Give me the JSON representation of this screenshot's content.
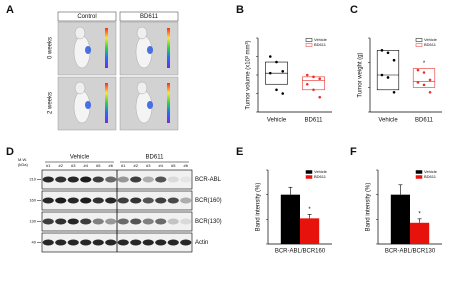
{
  "panel_labels": [
    "A",
    "B",
    "C",
    "D",
    "E",
    "F"
  ],
  "panel_a": {
    "columns": [
      "Control",
      "BD611"
    ],
    "rows": [
      "0 weeks",
      "2 weeks"
    ]
  },
  "panel_d": {
    "mw_label": [
      "M.W.",
      "(kDa)"
    ],
    "groups": [
      "Vehicle",
      "BD611"
    ],
    "lanes": [
      "#1",
      "#2",
      "#3",
      "#4",
      "#5",
      "#6",
      "#1",
      "#2",
      "#3",
      "#4",
      "#5",
      "#6"
    ],
    "markers": [
      "210",
      "160",
      "130",
      "40"
    ],
    "bands": [
      "BCR-ABL",
      "BCR(160)",
      "BCR(130)",
      "Actin"
    ]
  },
  "chart_data": [
    {
      "type": "box",
      "ylabel": "Tumor volume (x10³ mm³)",
      "categories": [
        "Vehicle",
        "BD611"
      ],
      "series": [
        {
          "name": "Vehicle",
          "color": "#000000",
          "points": [
            1.5,
            1.35,
            1.1,
            1.05,
            0.6,
            0.5
          ],
          "q1": 0.75,
          "median": 1.05,
          "q3": 1.35
        },
        {
          "name": "BD611",
          "color": "#e8322b",
          "points": [
            1.0,
            0.95,
            0.9,
            0.75,
            0.6,
            0.4
          ],
          "q1": 0.6,
          "median": 0.85,
          "q3": 0.95
        }
      ],
      "ylim": [
        0,
        2
      ],
      "yticks": [
        0,
        0.5,
        1,
        1.5,
        2
      ],
      "legend": "upper right"
    },
    {
      "type": "box",
      "ylabel": "Tumor weight (g)",
      "categories": [
        "Vehicle",
        "BD611"
      ],
      "series": [
        {
          "name": "Vehicle",
          "color": "#000000",
          "points": [
            1.25,
            1.2,
            1.05,
            0.75,
            0.7,
            0.4
          ],
          "q1": 0.45,
          "median": 0.75,
          "q3": 1.25
        },
        {
          "name": "BD611",
          "color": "#e8322b",
          "points": [
            0.85,
            0.8,
            0.65,
            0.6,
            0.55,
            0.4
          ],
          "q1": 0.5,
          "median": 0.62,
          "q3": 0.88
        }
      ],
      "ylim": [
        0,
        1.5
      ],
      "yticks": [
        0,
        0.5,
        1,
        1.5
      ],
      "legend": "upper right",
      "annotation": "*"
    },
    {
      "type": "bar",
      "ylabel": "Band intensity (%)",
      "categories": [
        "BCR-ABL/BCR160"
      ],
      "series": [
        {
          "name": "Vehicle",
          "color": "#000000",
          "values": [
            1.0
          ],
          "errors": [
            0.15
          ]
        },
        {
          "name": "BD611",
          "color": "#e8120c",
          "values": [
            0.52
          ],
          "errors": [
            0.08
          ]
        }
      ],
      "ylim": [
        0,
        1.5
      ],
      "yticks": [
        0,
        0.5,
        1,
        1.5
      ],
      "legend": "upper right",
      "annotation": "*"
    },
    {
      "type": "bar",
      "ylabel": "Band intensity (%)",
      "categories": [
        "BCR-ABL/BCR130"
      ],
      "series": [
        {
          "name": "Vehicle",
          "color": "#000000",
          "values": [
            1.0
          ],
          "errors": [
            0.2
          ]
        },
        {
          "name": "BD611",
          "color": "#e8120c",
          "values": [
            0.43
          ],
          "errors": [
            0.08
          ]
        }
      ],
      "ylim": [
        0,
        1.5
      ],
      "yticks": [
        0,
        0.5,
        1,
        1.5
      ],
      "legend": "upper right",
      "annotation": "*"
    }
  ]
}
